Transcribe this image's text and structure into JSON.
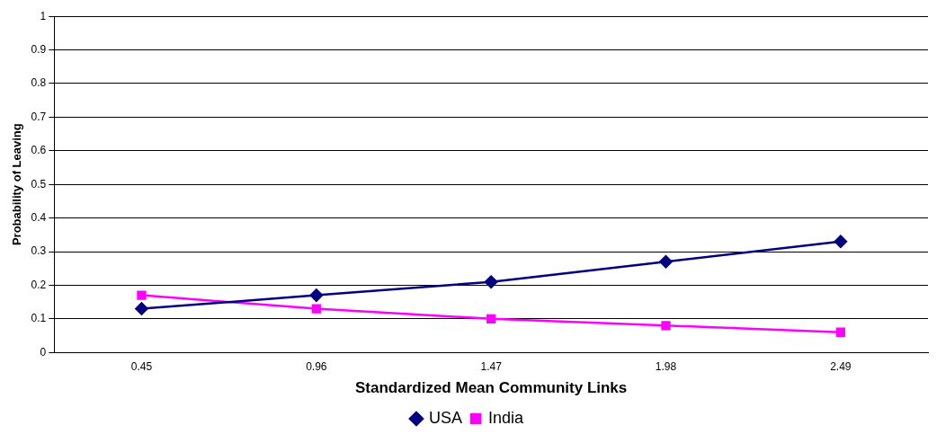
{
  "chart_data": {
    "type": "line",
    "xlabel": "Standardized Mean Community Links",
    "ylabel": "Probability of Leaving",
    "categories": [
      "0.45",
      "0.96",
      "1.47",
      "1.98",
      "2.49"
    ],
    "series": [
      {
        "name": "USA",
        "color": "#000080",
        "marker": "diamond",
        "values": [
          0.13,
          0.17,
          0.21,
          0.27,
          0.33
        ]
      },
      {
        "name": "India",
        "color": "#ff00ff",
        "marker": "square",
        "values": [
          0.17,
          0.13,
          0.1,
          0.08,
          0.06
        ]
      }
    ],
    "ylim": [
      0,
      1
    ],
    "yticks": [
      0,
      0.1,
      0.2,
      0.3,
      0.4,
      0.5,
      0.6,
      0.7,
      0.8,
      0.9,
      1
    ],
    "grid": "y",
    "legend": "bottom",
    "line_style": "solid"
  }
}
